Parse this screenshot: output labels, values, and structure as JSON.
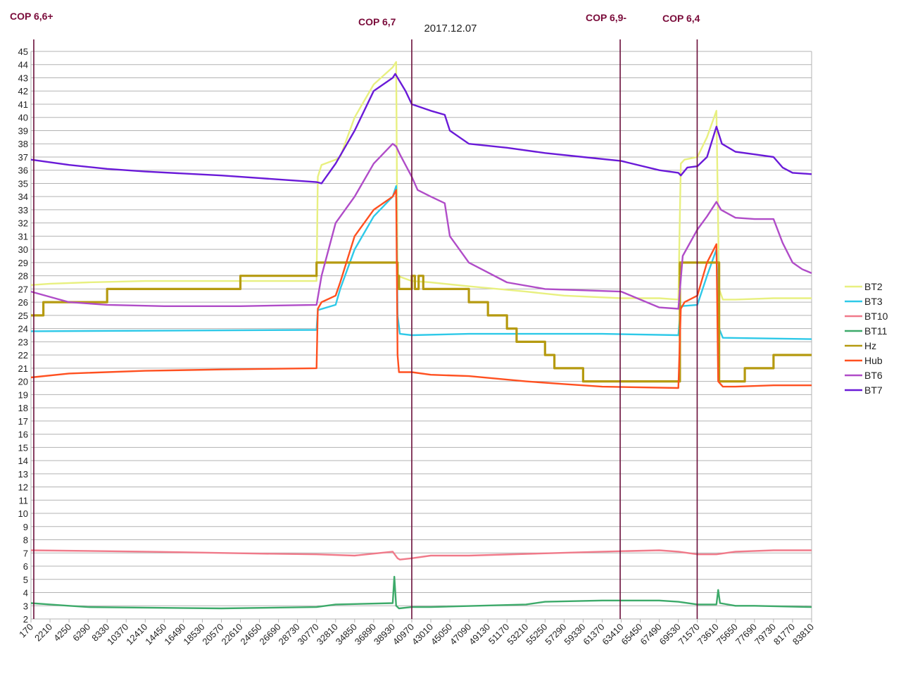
{
  "chart_data": {
    "type": "line",
    "title": "2017.12.07",
    "xlabel": "",
    "ylabel": "",
    "ylim": [
      2,
      45
    ],
    "xlim": [
      170,
      83810
    ],
    "grid": true,
    "legend_position": "right",
    "x_tick_labels": [
      "170",
      "2210",
      "4250",
      "6290",
      "8330",
      "10370",
      "12410",
      "14450",
      "16490",
      "18530",
      "20570",
      "22610",
      "24650",
      "26690",
      "28730",
      "30770",
      "32810",
      "34850",
      "36890",
      "38930",
      "40970",
      "43010",
      "45050",
      "47090",
      "49130",
      "51170",
      "53210",
      "55250",
      "57290",
      "59330",
      "61370",
      "63410",
      "65450",
      "67490",
      "69530",
      "71570",
      "73610",
      "75650",
      "77690",
      "79730",
      "81770",
      "83810"
    ],
    "y_tick_labels": [
      "2",
      "3",
      "4",
      "5",
      "6",
      "7",
      "8",
      "9",
      "10",
      "11",
      "12",
      "13",
      "14",
      "15",
      "16",
      "17",
      "18",
      "19",
      "20",
      "21",
      "22",
      "23",
      "24",
      "25",
      "26",
      "27",
      "28",
      "29",
      "30",
      "31",
      "32",
      "33",
      "34",
      "35",
      "36",
      "37",
      "38",
      "39",
      "40",
      "41",
      "42",
      "43",
      "44",
      "45"
    ],
    "markers": [
      {
        "label": "COP 6,6+",
        "x": 470
      },
      {
        "label": "COP 6,7",
        "x": 40970
      },
      {
        "label": "COP 6,9-",
        "x": 63300
      },
      {
        "label": "COP 6,4",
        "x": 71550
      }
    ],
    "marker_color": "#6b0f3a",
    "series": [
      {
        "name": "BT2",
        "color": "#e8f080",
        "x": [
          170,
          2210,
          6290,
          12410,
          20570,
          30770,
          30900,
          31300,
          32810,
          33300,
          34850,
          36890,
          38930,
          39300,
          39450,
          40970,
          43010,
          47090,
          53210,
          57290,
          63410,
          67490,
          69530,
          69800,
          70200,
          71570,
          72600,
          73610,
          73900,
          74300,
          75650,
          79730,
          83810
        ],
        "y": [
          27.3,
          27.4,
          27.5,
          27.6,
          27.6,
          27.6,
          35.5,
          36.4,
          36.8,
          37.0,
          40.0,
          42.5,
          43.8,
          44.2,
          28.0,
          27.6,
          27.5,
          27.2,
          26.8,
          26.5,
          26.3,
          26.3,
          26.2,
          36.5,
          36.8,
          37.0,
          38.5,
          40.5,
          27.0,
          26.2,
          26.2,
          26.3,
          26.3
        ]
      },
      {
        "name": "BT3",
        "color": "#2ec9e8",
        "x": [
          170,
          30770,
          30900,
          32810,
          33300,
          34850,
          36890,
          38930,
          39300,
          39450,
          39700,
          40970,
          47090,
          61370,
          69530,
          69800,
          71570,
          72600,
          73610,
          73900,
          74300,
          83810
        ],
        "y": [
          23.8,
          23.9,
          25.4,
          25.8,
          27.0,
          30.0,
          32.5,
          34.0,
          34.8,
          25.0,
          23.6,
          23.5,
          23.6,
          23.6,
          23.5,
          25.7,
          25.8,
          28.0,
          30.0,
          24.0,
          23.3,
          23.2
        ]
      },
      {
        "name": "BT10",
        "color": "#f07a8a",
        "x": [
          170,
          12410,
          24650,
          30770,
          34850,
          38930,
          39450,
          39700,
          40970,
          43010,
          47090,
          61370,
          67490,
          69530,
          71570,
          73610,
          75650,
          79730,
          83810
        ],
        "y": [
          7.2,
          7.1,
          6.95,
          6.9,
          6.8,
          7.1,
          6.6,
          6.5,
          6.6,
          6.8,
          6.8,
          7.1,
          7.2,
          7.1,
          6.9,
          6.9,
          7.1,
          7.2,
          7.2
        ]
      },
      {
        "name": "BT11",
        "color": "#3daa6a",
        "x": [
          170,
          2210,
          4250,
          6290,
          20570,
          30770,
          32810,
          38930,
          39100,
          39300,
          39600,
          40970,
          43010,
          53210,
          55250,
          61370,
          67490,
          69530,
          71570,
          73610,
          73800,
          74000,
          75650,
          77690,
          83810
        ],
        "y": [
          3.2,
          3.1,
          3.0,
          2.9,
          2.8,
          2.9,
          3.1,
          3.2,
          5.2,
          3.0,
          2.8,
          2.9,
          2.9,
          3.1,
          3.3,
          3.4,
          3.4,
          3.3,
          3.1,
          3.1,
          4.2,
          3.2,
          3.0,
          3.0,
          2.9
        ]
      },
      {
        "name": "Hz",
        "color": "#b59a10",
        "step": true,
        "x": [
          170,
          1500,
          4250,
          8330,
          14450,
          22610,
          30770,
          38930,
          39450,
          39600,
          40970,
          41300,
          41700,
          42200,
          43010,
          45050,
          47090,
          48100,
          49130,
          51170,
          52200,
          53210,
          55250,
          56250,
          57290,
          59330,
          61370,
          67490,
          69530,
          69700,
          71570,
          72600,
          73610,
          73900,
          76650,
          77690,
          78700,
          79730,
          81770,
          83810
        ],
        "y": [
          25,
          26,
          26,
          27,
          27,
          28,
          29,
          29,
          28,
          27,
          28,
          27,
          28,
          27,
          27,
          27,
          26,
          26,
          25,
          24,
          23,
          23,
          22,
          21,
          21,
          20,
          20,
          20,
          20,
          29,
          29,
          29,
          29,
          20,
          21,
          21,
          21,
          22,
          22,
          22
        ]
      },
      {
        "name": "Hub",
        "color": "#ff5020",
        "x": [
          170,
          4250,
          12410,
          20570,
          30770,
          30900,
          31300,
          32810,
          33300,
          34850,
          36890,
          38930,
          39300,
          39450,
          39600,
          40970,
          43010,
          47090,
          53210,
          57290,
          61370,
          69530,
          69800,
          70200,
          71570,
          72600,
          73610,
          73800,
          74300,
          75650,
          79730,
          83810
        ],
        "y": [
          20.3,
          20.6,
          20.8,
          20.9,
          21.0,
          25.5,
          26.0,
          26.5,
          27.5,
          31.0,
          33.0,
          34.0,
          34.5,
          22.0,
          20.7,
          20.7,
          20.5,
          20.4,
          20.0,
          19.8,
          19.6,
          19.5,
          25.5,
          26.0,
          26.5,
          29.0,
          30.4,
          20.0,
          19.6,
          19.6,
          19.7,
          19.7
        ]
      },
      {
        "name": "BT6",
        "color": "#b04cc8",
        "x": [
          170,
          2210,
          4250,
          8330,
          14450,
          22610,
          30770,
          31300,
          32810,
          34850,
          36890,
          38930,
          39300,
          39700,
          40970,
          41600,
          43010,
          44500,
          45050,
          47090,
          51170,
          55250,
          63410,
          65450,
          67490,
          69530,
          70000,
          71570,
          72600,
          73610,
          74100,
          75650,
          77690,
          79730,
          80700,
          81770,
          82800,
          83810
        ],
        "y": [
          26.8,
          26.4,
          26.0,
          25.8,
          25.7,
          25.7,
          25.8,
          28.0,
          32.0,
          34.0,
          36.5,
          38.0,
          37.8,
          37.2,
          35.5,
          34.5,
          34.0,
          33.5,
          31.0,
          29.0,
          27.5,
          27.0,
          26.8,
          26.2,
          25.6,
          25.5,
          29.5,
          31.5,
          32.5,
          33.6,
          33.0,
          32.4,
          32.3,
          32.3,
          30.5,
          29.0,
          28.5,
          28.2
        ]
      },
      {
        "name": "BT7",
        "color": "#6a1ad8",
        "x": [
          170,
          4250,
          8330,
          12410,
          20570,
          26690,
          30770,
          31300,
          32810,
          34850,
          36890,
          38930,
          39200,
          40300,
          40970,
          43010,
          44500,
          45050,
          47090,
          51170,
          55250,
          59330,
          63410,
          67490,
          69530,
          69800,
          70500,
          71570,
          72600,
          73610,
          74200,
          75650,
          77690,
          79730,
          80700,
          81770,
          83810
        ],
        "y": [
          36.8,
          36.4,
          36.1,
          35.9,
          35.6,
          35.3,
          35.1,
          35.0,
          36.5,
          39.0,
          42.0,
          43.0,
          43.3,
          42.0,
          41.0,
          40.5,
          40.2,
          39.0,
          38.0,
          37.7,
          37.3,
          37.0,
          36.7,
          36.0,
          35.8,
          35.6,
          36.2,
          36.3,
          37.0,
          39.3,
          38.0,
          37.4,
          37.2,
          37.0,
          36.2,
          35.8,
          35.7
        ]
      }
    ]
  }
}
